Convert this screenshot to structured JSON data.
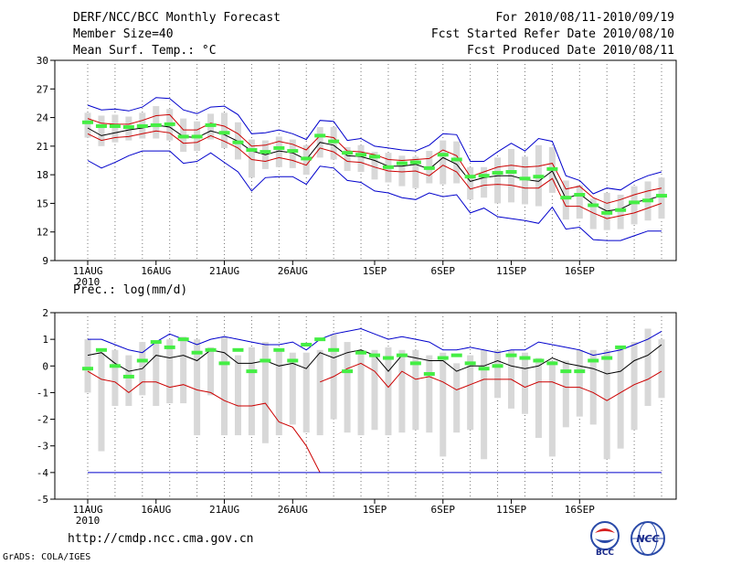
{
  "header": {
    "title": "DERF/NCC/BCC Monthly Forecast",
    "member_size": "Member Size=40",
    "variable": "Mean Surf. Temp.: °C",
    "period": "For 2010/08/11-2010/09/19",
    "fcst_started": "Fcst Started Refer Date 2010/08/10",
    "fcst_produced": "Fcst Produced Date 2010/08/11"
  },
  "footer": {
    "url": "http://cmdp.ncc.cma.gov.cn",
    "credit": "GrADS: COLA/IGES",
    "logo_bcc": "BCC",
    "logo_ncc": "NCC"
  },
  "colors": {
    "box": "#d8d8d8",
    "spread": "#0000cc",
    "band": "#cc0000",
    "mean": "#000000",
    "median": "#44ee44"
  },
  "chart_data": [
    {
      "type": "line",
      "title": "Mean Surf. Temp.: °C",
      "x_tick_labels": [
        "11AUG",
        "16AUG",
        "21AUG",
        "26AUG",
        "1SEP",
        "6SEP",
        "11SEP",
        "16SEP"
      ],
      "x_tick_days": [
        0,
        5,
        10,
        15,
        21,
        26,
        31,
        36
      ],
      "x_sublabel": "2010",
      "ylim": [
        9,
        30
      ],
      "y_ticks": [
        9,
        12,
        15,
        18,
        21,
        24,
        27,
        30
      ],
      "series": [
        {
          "name": "Maximum",
          "values": [
            25.3,
            24.8,
            24.9,
            24.7,
            25.1,
            26.1,
            26.0,
            24.8,
            24.4,
            25.1,
            25.2,
            24.3,
            22.3,
            22.4,
            22.7,
            22.3,
            21.7,
            23.7,
            23.6,
            21.6,
            21.8,
            21.0,
            20.8,
            20.6,
            20.5,
            21.1,
            22.3,
            22.2,
            19.4,
            19.4,
            20.4,
            21.3,
            20.5,
            21.8,
            21.5,
            17.9,
            17.4,
            16.0,
            16.6,
            16.4,
            17.3,
            17.9,
            18.3
          ]
        },
        {
          "name": "Upper",
          "values": [
            23.9,
            23.4,
            23.3,
            23.3,
            23.7,
            24.2,
            24.3,
            22.7,
            22.7,
            23.4,
            23.1,
            22.3,
            21.0,
            21.1,
            21.5,
            21.2,
            20.6,
            22.1,
            21.9,
            20.5,
            20.4,
            20.1,
            19.6,
            19.5,
            19.6,
            19.7,
            20.6,
            20.0,
            17.8,
            18.3,
            18.8,
            19.0,
            18.8,
            18.9,
            19.2,
            16.5,
            16.8,
            15.6,
            15.0,
            15.4,
            15.9,
            16.3,
            16.6
          ]
        },
        {
          "name": "Mean",
          "values": [
            22.9,
            22.1,
            22.4,
            22.7,
            22.9,
            23.2,
            23.0,
            22.0,
            21.9,
            22.6,
            22.2,
            21.5,
            20.5,
            20.1,
            20.5,
            20.3,
            19.6,
            21.4,
            21.1,
            20.0,
            19.9,
            19.5,
            18.9,
            18.9,
            19.1,
            18.6,
            19.8,
            19.1,
            17.3,
            17.7,
            17.9,
            17.9,
            17.5,
            17.3,
            18.4,
            15.5,
            16.0,
            14.9,
            14.2,
            14.4,
            15.1,
            15.4,
            15.8
          ]
        },
        {
          "name": "Lower",
          "values": [
            22.3,
            21.6,
            21.9,
            22.0,
            22.3,
            22.6,
            22.4,
            21.3,
            21.4,
            22.1,
            21.5,
            20.8,
            19.6,
            19.4,
            19.8,
            19.5,
            19.0,
            20.8,
            20.4,
            19.4,
            19.3,
            18.8,
            18.4,
            18.3,
            18.4,
            17.9,
            19.0,
            18.3,
            16.5,
            16.9,
            17.0,
            16.9,
            16.6,
            16.6,
            17.6,
            14.7,
            14.7,
            14.0,
            13.4,
            13.7,
            14.0,
            14.5,
            15.0
          ]
        },
        {
          "name": "Minimum",
          "values": [
            19.5,
            18.7,
            19.3,
            20.0,
            20.5,
            20.5,
            20.5,
            19.2,
            19.4,
            20.3,
            19.3,
            18.3,
            16.3,
            17.7,
            17.8,
            17.8,
            17.0,
            18.9,
            18.7,
            17.4,
            17.2,
            16.3,
            16.1,
            15.6,
            15.4,
            16.1,
            15.7,
            15.9,
            14.0,
            14.5,
            13.6,
            13.4,
            13.2,
            12.9,
            14.6,
            12.3,
            12.5,
            11.2,
            11.1,
            11.1,
            11.6,
            12.1,
            12.1
          ]
        },
        {
          "name": "Median",
          "values": [
            23.5,
            23.1,
            23.1,
            23.0,
            23.1,
            23.2,
            23.3,
            22.0,
            22.0,
            23.2,
            22.4,
            21.4,
            20.6,
            20.4,
            20.8,
            20.5,
            19.7,
            22.1,
            21.5,
            20.3,
            20.1,
            19.9,
            18.8,
            19.2,
            19.3,
            18.7,
            20.1,
            19.6,
            17.8,
            17.9,
            18.2,
            18.3,
            17.6,
            17.8,
            18.6,
            15.6,
            15.9,
            14.8,
            14.0,
            14.3,
            15.1,
            15.3,
            15.8
          ]
        }
      ],
      "box_q3": [
        24.5,
        24.2,
        24.3,
        24.1,
        24.5,
        25.2,
        24.9,
        23.9,
        23.6,
        24.4,
        24.5,
        23.5,
        21.7,
        21.6,
        22.0,
        21.7,
        21.1,
        23.0,
        23.0,
        20.9,
        21.1,
        20.4,
        20.3,
        20.0,
        19.9,
        20.5,
        21.6,
        21.5,
        18.8,
        18.8,
        19.8,
        20.7,
        19.9,
        21.1,
        20.9,
        17.4,
        16.9,
        15.5,
        16.1,
        15.9,
        16.8,
        17.3,
        17.7
      ],
      "box_q1": [
        21.9,
        21.0,
        21.4,
        21.6,
        21.8,
        21.8,
        21.6,
        20.4,
        20.5,
        21.7,
        20.8,
        19.6,
        17.7,
        18.6,
        18.8,
        18.7,
        18.0,
        19.8,
        19.6,
        18.4,
        18.3,
        17.5,
        17.2,
        16.8,
        16.6,
        17.1,
        17.0,
        17.1,
        15.4,
        15.6,
        15.0,
        15.1,
        14.9,
        14.7,
        16.1,
        13.3,
        13.4,
        12.3,
        12.2,
        12.3,
        12.8,
        13.2,
        13.4
      ]
    },
    {
      "type": "line",
      "title": "Prec.: log(mm/d)",
      "x_tick_labels": [
        "11AUG",
        "16AUG",
        "21AUG",
        "26AUG",
        "1SEP",
        "6SEP",
        "11SEP",
        "16SEP"
      ],
      "x_tick_days": [
        0,
        5,
        10,
        15,
        21,
        26,
        31,
        36
      ],
      "x_sublabel": "2010",
      "ylim": [
        -5,
        2
      ],
      "y_ticks": [
        -5,
        -4,
        -3,
        -2,
        -1,
        0,
        1,
        2
      ],
      "series": [
        {
          "name": "Maximum",
          "values": [
            1.0,
            1.0,
            0.8,
            0.6,
            0.5,
            0.9,
            1.2,
            1.0,
            0.8,
            1.0,
            1.1,
            1.0,
            0.9,
            0.8,
            0.8,
            0.9,
            0.6,
            1.0,
            1.2,
            1.3,
            1.4,
            1.2,
            1.0,
            1.1,
            1.0,
            0.9,
            0.6,
            0.6,
            0.7,
            0.6,
            0.5,
            0.6,
            0.6,
            0.9,
            0.8,
            0.7,
            0.6,
            0.4,
            0.5,
            0.6,
            0.8,
            1.0,
            1.3
          ]
        },
        {
          "name": "Mean",
          "values": [
            0.4,
            0.5,
            0.1,
            -0.2,
            -0.1,
            0.4,
            0.3,
            0.4,
            0.2,
            0.6,
            0.5,
            0.1,
            0.1,
            0.2,
            0.0,
            0.1,
            -0.1,
            0.5,
            0.3,
            0.5,
            0.6,
            0.4,
            -0.2,
            0.4,
            0.3,
            0.2,
            0.2,
            -0.2,
            0.0,
            0.0,
            0.2,
            0.0,
            -0.1,
            0.0,
            0.3,
            0.1,
            0.0,
            -0.1,
            -0.3,
            -0.2,
            0.2,
            0.4,
            0.8
          ]
        },
        {
          "name": "Lower",
          "values": [
            -0.2,
            -0.5,
            -0.6,
            -1.0,
            -0.6,
            -0.6,
            -0.8,
            -0.7,
            -0.9,
            -1.0,
            -1.3,
            -1.5,
            -1.5,
            -1.4,
            -2.1,
            -2.3,
            -3.0,
            -4.0,
            null,
            null,
            null,
            null,
            null,
            null,
            null,
            null,
            null,
            null,
            null,
            null,
            null,
            null,
            null,
            null,
            null,
            null,
            null,
            null,
            null,
            null,
            null,
            null,
            null
          ]
        },
        {
          "name": "Lower (second)",
          "values": [
            null,
            null,
            null,
            null,
            null,
            null,
            null,
            null,
            null,
            null,
            null,
            null,
            null,
            null,
            null,
            null,
            null,
            -0.6,
            -0.4,
            -0.1,
            0.1,
            -0.2,
            -0.8,
            -0.2,
            -0.5,
            -0.4,
            -0.6,
            -0.9,
            -0.7,
            -0.5,
            -0.5,
            -0.5,
            -0.8,
            -0.6,
            -0.6,
            -0.8,
            -0.8,
            -1.0,
            -1.3,
            -1.0,
            -0.7,
            -0.5,
            -0.2
          ]
        },
        {
          "name": "Minimum",
          "values": [
            -4.0,
            -4.0,
            -4.0,
            -4.0,
            -4.0,
            -4.0,
            -4.0,
            -4.0,
            -4.0,
            -4.0,
            -4.0,
            -4.0,
            -4.0,
            -4.0,
            -4.0,
            -4.0,
            -4.0,
            -4.0,
            -4.0,
            -4.0,
            -4.0,
            -4.0,
            -4.0,
            -4.0,
            -4.0,
            -4.0,
            -4.0,
            -4.0,
            -4.0,
            -4.0,
            -4.0,
            -4.0,
            -4.0,
            -4.0,
            -4.0,
            -4.0,
            -4.0,
            -4.0,
            -4.0,
            -4.0,
            -4.0,
            -4.0,
            -4.0
          ]
        },
        {
          "name": "Median",
          "values": [
            -0.1,
            0.6,
            0.0,
            -0.4,
            0.2,
            0.9,
            0.7,
            1.0,
            0.5,
            0.6,
            0.1,
            0.6,
            -0.2,
            0.2,
            0.6,
            0.2,
            0.8,
            1.0,
            0.6,
            -0.2,
            0.5,
            0.4,
            0.3,
            0.4,
            0.1,
            -0.3,
            0.3,
            0.4,
            0.1,
            -0.1,
            0.0,
            0.4,
            0.3,
            0.2,
            0.1,
            -0.2,
            -0.2,
            0.2,
            0.3,
            0.7,
            null,
            null,
            null
          ]
        }
      ],
      "box_q3": [
        1.0,
        0.5,
        0.6,
        0.4,
        0.9,
        0.9,
        1.0,
        1.1,
        1.0,
        0.7,
        1.1,
        0.4,
        0.7,
        0.9,
        0.6,
        0.5,
        0.5,
        0.6,
        1.2,
        0.9,
        0.6,
        0.6,
        0.7,
        0.6,
        0.6,
        0.4,
        0.5,
        0.1,
        0.4,
        0.6,
        0.6,
        0.6,
        0.5,
        0.3,
        0.2,
        0.2,
        0.6,
        0.6,
        0.6,
        0.7,
        0.9,
        1.4,
        1.0
      ],
      "box_q1": [
        -1.0,
        -3.2,
        -1.5,
        -1.5,
        -1.1,
        -1.5,
        -1.4,
        -1.4,
        -2.6,
        -1.1,
        -2.6,
        -2.6,
        -2.6,
        -2.9,
        -2.6,
        -2.2,
        -2.5,
        -2.6,
        -2.0,
        -2.5,
        -2.6,
        -2.4,
        -2.6,
        -2.5,
        -2.4,
        -2.5,
        -3.4,
        -2.5,
        -2.4,
        -3.5,
        -1.2,
        -1.6,
        -1.8,
        -2.7,
        -3.4,
        -2.3,
        -1.9,
        -2.2,
        -3.5,
        -3.1,
        -2.4,
        -1.5,
        -1.2
      ]
    }
  ]
}
